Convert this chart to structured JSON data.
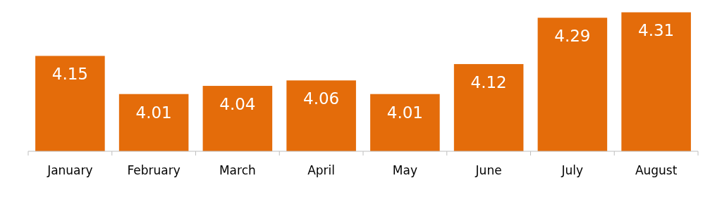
{
  "chart_data": {
    "type": "bar",
    "categories": [
      "January",
      "February",
      "March",
      "April",
      "May",
      "June",
      "July",
      "August"
    ],
    "values": [
      4.15,
      4.01,
      4.04,
      4.06,
      4.01,
      4.12,
      4.29,
      4.31
    ],
    "color": "#e46c0a",
    "ylim": [
      3.8,
      4.35
    ],
    "data_labels": true,
    "tick_labels": "x"
  }
}
